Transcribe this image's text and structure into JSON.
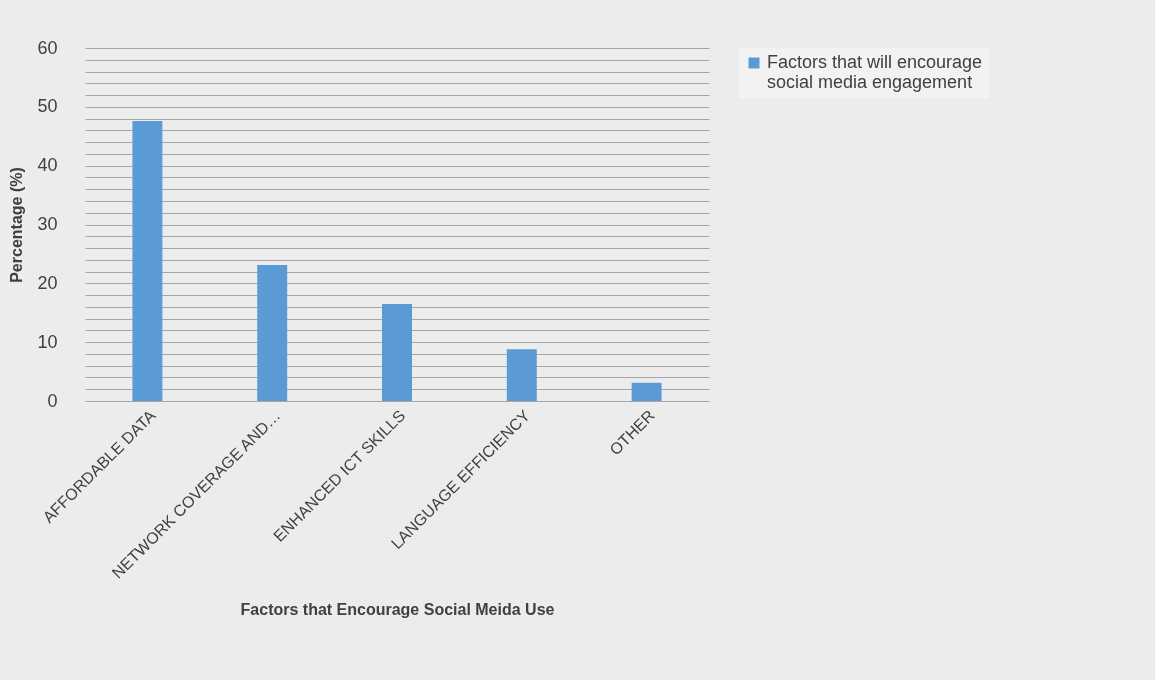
{
  "chart_data": {
    "type": "bar",
    "xlabel": "Factors that Encourage Social Meida Use",
    "ylabel": "Percentage (%)",
    "categories": [
      "AFFORDABLE DATA",
      "NETWORK COVERAGE AND…",
      "ENHANCED ICT SKILLS",
      "LANGUAGE EFFICIENCY",
      "OTHER"
    ],
    "series": [
      {
        "name": "Factors that will encourage social media engagement",
        "color": "#5b9bd5",
        "values": [
          47.6,
          23.1,
          16.5,
          8.8,
          3.1
        ]
      }
    ],
    "ylim": [
      0,
      60
    ],
    "yticks": [
      0,
      {
        "value": 2,
        "label": null
      },
      {
        "value": 4,
        "label": null
      },
      {
        "value": 6,
        "label": null
      },
      {
        "value": 8,
        "label": null
      },
      10,
      {
        "value": 12,
        "label": null
      },
      {
        "value": 14,
        "label": null
      },
      {
        "value": 16,
        "label": null
      },
      {
        "value": 18,
        "label": null
      },
      20,
      {
        "value": 22,
        "label": null
      },
      {
        "value": 24,
        "label": null
      },
      {
        "value": 26,
        "label": null
      },
      {
        "value": 28,
        "label": null
      },
      30,
      {
        "value": 32,
        "label": null
      },
      {
        "value": 34,
        "label": null
      },
      {
        "value": 36,
        "label": null
      },
      {
        "value": 38,
        "label": null
      },
      40,
      {
        "value": 42,
        "label": null
      },
      {
        "value": 44,
        "label": null
      },
      {
        "value": 46,
        "label": null
      },
      {
        "value": 48,
        "label": null
      },
      50,
      {
        "value": 52,
        "label": null
      },
      {
        "value": 54,
        "label": null
      },
      {
        "value": 56,
        "label": null
      },
      {
        "value": 58,
        "label": null
      },
      60
    ],
    "grid": "y",
    "legend": "right"
  }
}
